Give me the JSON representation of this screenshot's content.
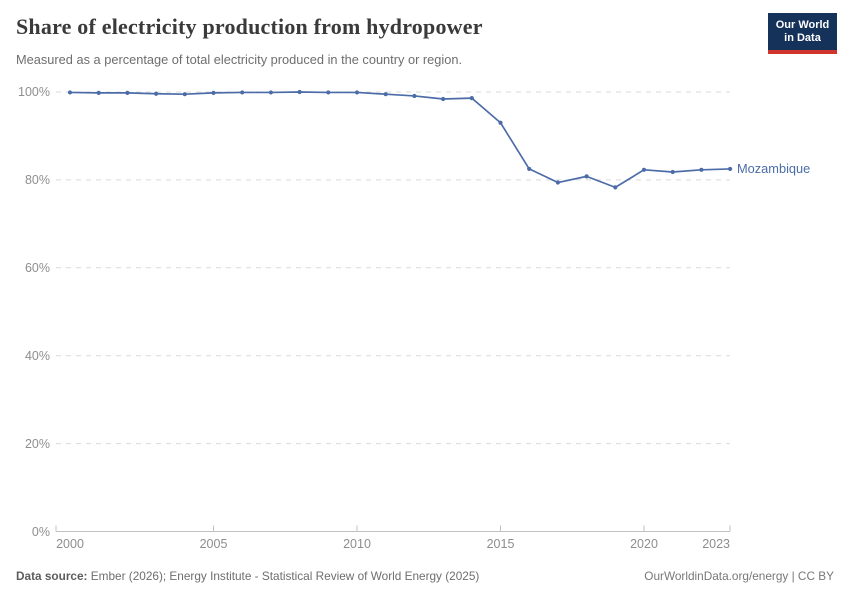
{
  "header": {
    "title": "Share of electricity production from hydropower",
    "subtitle": "Measured as a percentage of total electricity produced in the country or region."
  },
  "logo": {
    "line1": "Our World",
    "line2": "in Data",
    "bg_color": "#15325b",
    "bar_color": "#d0342c"
  },
  "chart_data": {
    "type": "line",
    "title": "Share of electricity production from hydropower",
    "xlabel": "",
    "ylabel": "",
    "ylim": [
      0,
      100
    ],
    "grid": "horizontal-dashed",
    "legend_position": "end-of-line-label",
    "x": [
      2000,
      2001,
      2002,
      2003,
      2004,
      2005,
      2006,
      2007,
      2008,
      2009,
      2010,
      2011,
      2012,
      2013,
      2014,
      2015,
      2016,
      2017,
      2018,
      2019,
      2020,
      2021,
      2022,
      2023
    ],
    "series": [
      {
        "name": "Mozambique",
        "color": "#4C6CA8",
        "values": [
          99.9,
          99.8,
          99.8,
          99.6,
          99.5,
          99.8,
          99.9,
          99.9,
          100,
          99.9,
          99.9,
          99.5,
          99.1,
          98.4,
          98.6,
          93.0,
          82.5,
          79.4,
          80.8,
          78.3,
          82.3,
          81.8,
          82.3,
          82.5
        ]
      }
    ],
    "yticks": [
      {
        "value": 100,
        "label": "100%"
      },
      {
        "value": 80,
        "label": "80%"
      },
      {
        "value": 60,
        "label": "60%"
      },
      {
        "value": 40,
        "label": "40%"
      },
      {
        "value": 20,
        "label": "20%"
      },
      {
        "value": 0,
        "label": "0%"
      }
    ],
    "xticks": [
      {
        "value": 2000,
        "label": "2000",
        "tick": false
      },
      {
        "value": 2005,
        "label": "2005",
        "tick": true
      },
      {
        "value": 2010,
        "label": "2010",
        "tick": true
      },
      {
        "value": 2015,
        "label": "2015",
        "tick": true
      },
      {
        "value": 2020,
        "label": "2020",
        "tick": true
      },
      {
        "value": 2023,
        "label": "2023",
        "tick": false
      }
    ]
  },
  "footer": {
    "datasource_label": "Data source:",
    "datasource_text": " Ember (2026); Energy Institute - Statistical Review of World Energy (2025)",
    "credit": "OurWorldinData.org/energy | CC BY"
  }
}
